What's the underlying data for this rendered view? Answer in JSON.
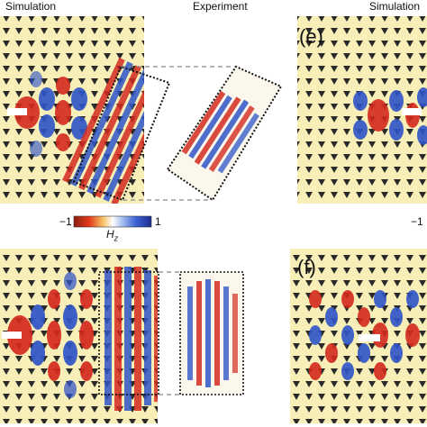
{
  "labels": {
    "left_heading": "Simulation",
    "middle_heading": "Experiment",
    "right_heading": "Simulation",
    "panel_e": "(e)",
    "panel_f": "(f)"
  },
  "colorbar": {
    "min_label": "−1",
    "max_label": "1",
    "symbol": "H",
    "subscript": "z",
    "right_min_label": "−1"
  },
  "colors": {
    "negative": "#d42a1e",
    "positive": "#2f55c8",
    "lattice_fill": "#f5e9a6",
    "triangle": "#2a2a2a"
  }
}
